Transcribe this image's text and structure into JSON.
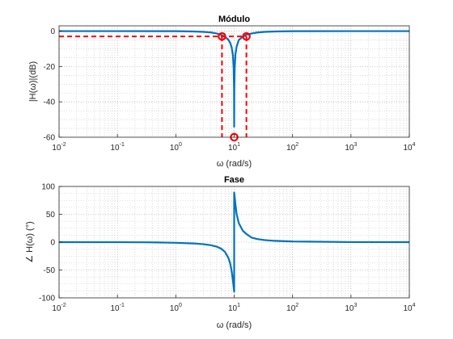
{
  "chart_data": [
    {
      "type": "line",
      "title": "Módulo",
      "xlabel": "ω (rad/s)",
      "ylabel": "|H(ω)|(dB)",
      "xscale": "log",
      "xlim": [
        0.01,
        10000
      ],
      "ylim": [
        -60,
        3
      ],
      "xticks": [
        0.01,
        0.1,
        1,
        10,
        100,
        1000,
        10000
      ],
      "xtick_labels": [
        {
          "base": "10",
          "exp": "-2"
        },
        {
          "base": "10",
          "exp": "-1"
        },
        {
          "base": "10",
          "exp": "0"
        },
        {
          "base": "10",
          "exp": "1"
        },
        {
          "base": "10",
          "exp": "2"
        },
        {
          "base": "10",
          "exp": "3"
        },
        {
          "base": "10",
          "exp": "4"
        }
      ],
      "yticks": [
        -60,
        -40,
        -20,
        0
      ],
      "ytick_labels": [
        "-60",
        "-40",
        "-20",
        "0"
      ],
      "grid": "major-and-minor dotted",
      "series": [
        {
          "kind": "notch magnitude curve",
          "color": "#0072BD",
          "points": [
            [
              0.01,
              0.0
            ],
            [
              0.1,
              0.0
            ],
            [
              0.5,
              -0.01
            ],
            [
              1,
              -0.04
            ],
            [
              2,
              -0.18
            ],
            [
              3,
              -0.42
            ],
            [
              4,
              -0.77
            ],
            [
              5,
              -1.3
            ],
            [
              6,
              -2.1
            ],
            [
              7,
              -3.2
            ],
            [
              8,
              -5.0
            ],
            [
              8.5,
              -6.5
            ],
            [
              9,
              -8.8
            ],
            [
              9.5,
              -13.3
            ],
            [
              9.8,
              -21.0
            ],
            [
              9.95,
              -33.0
            ],
            [
              10,
              -54.0
            ],
            [
              10.05,
              -33.0
            ],
            [
              10.2,
              -21.0
            ],
            [
              10.5,
              -13.3
            ],
            [
              11,
              -8.8
            ],
            [
              12,
              -5.0
            ],
            [
              14,
              -3.2
            ],
            [
              16,
              -2.1
            ],
            [
              20,
              -1.3
            ],
            [
              25,
              -0.77
            ],
            [
              33,
              -0.42
            ],
            [
              50,
              -0.18
            ],
            [
              100,
              -0.04
            ],
            [
              1000,
              0.0
            ],
            [
              10000,
              0.0
            ]
          ]
        },
        {
          "kind": "dashed markers",
          "color": "#FF0000",
          "lines": [
            {
              "from": [
                0.01,
                -3
              ],
              "to": [
                16.2,
                -3
              ]
            },
            {
              "from": [
                6.18,
                -3
              ],
              "to": [
                6.18,
                -60
              ]
            },
            {
              "from": [
                16.2,
                -3
              ],
              "to": [
                16.2,
                -60
              ]
            }
          ],
          "points": [
            [
              6.18,
              -3
            ],
            [
              16.2,
              -3
            ],
            [
              10,
              -60
            ]
          ]
        }
      ]
    },
    {
      "type": "line",
      "title": "Fase",
      "xlabel": "ω (rad/s)",
      "ylabel": "∠ H(ω) (°)",
      "xscale": "log",
      "xlim": [
        0.01,
        10000
      ],
      "ylim": [
        -100,
        100
      ],
      "xticks": [
        0.01,
        0.1,
        1,
        10,
        100,
        1000,
        10000
      ],
      "xtick_labels": [
        {
          "base": "10",
          "exp": "-2"
        },
        {
          "base": "10",
          "exp": "-1"
        },
        {
          "base": "10",
          "exp": "0"
        },
        {
          "base": "10",
          "exp": "1"
        },
        {
          "base": "10",
          "exp": "2"
        },
        {
          "base": "10",
          "exp": "3"
        },
        {
          "base": "10",
          "exp": "4"
        }
      ],
      "yticks": [
        -100,
        -50,
        0,
        50,
        100
      ],
      "ytick_labels": [
        "-100",
        "-50",
        "0",
        "50",
        "100"
      ],
      "grid": "major-and-minor dotted",
      "series": [
        {
          "kind": "notch phase curve",
          "color": "#0072BD",
          "points": [
            [
              0.01,
              0.0
            ],
            [
              0.1,
              -0.1
            ],
            [
              0.3,
              -0.3
            ],
            [
              0.5,
              -0.6
            ],
            [
              1,
              -1.2
            ],
            [
              2,
              -2.3
            ],
            [
              3,
              -3.7
            ],
            [
              4,
              -5.5
            ],
            [
              5,
              -8.0
            ],
            [
              6,
              -11.8
            ],
            [
              7,
              -17.9
            ],
            [
              8,
              -28.9
            ],
            [
              8.5,
              -37.6
            ],
            [
              9,
              -50.3
            ],
            [
              9.5,
              -68.1
            ],
            [
              9.8,
              -81.0
            ],
            [
              9.99,
              -89.0
            ],
            [
              10,
              -89.0
            ],
            [
              10,
              89.0
            ],
            [
              10.01,
              89.0
            ],
            [
              10.2,
              81.0
            ],
            [
              10.5,
              68.1
            ],
            [
              11,
              50.3
            ],
            [
              12,
              34.0
            ],
            [
              14,
              20.8
            ],
            [
              16,
              15.0
            ],
            [
              20,
              8.0
            ],
            [
              25,
              5.5
            ],
            [
              33,
              3.7
            ],
            [
              50,
              2.3
            ],
            [
              100,
              1.2
            ],
            [
              1000,
              0.1
            ],
            [
              10000,
              0.0
            ]
          ]
        }
      ]
    }
  ]
}
